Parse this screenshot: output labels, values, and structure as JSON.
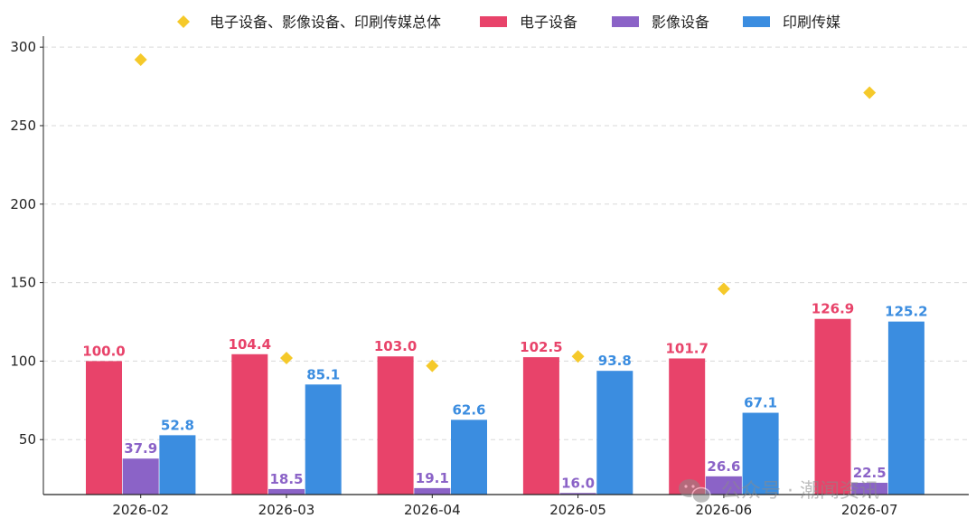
{
  "chart_data": {
    "type": "bar",
    "categories": [
      "2026-02",
      "2026-03",
      "2026-04",
      "2026-05",
      "2026-06",
      "2026-07"
    ],
    "series": [
      {
        "name": "电子设备",
        "kind": "bar",
        "color": "#e8436a",
        "values": [
          100.0,
          104.4,
          103.0,
          102.5,
          101.7,
          126.9
        ],
        "labels": [
          "100.0",
          "104.4",
          "103.0",
          "102.5",
          "101.7",
          "126.9"
        ]
      },
      {
        "name": "影像设备",
        "kind": "bar",
        "color": "#8b63c7",
        "values": [
          37.9,
          18.5,
          19.1,
          16.0,
          26.6,
          22.5
        ],
        "labels": [
          "37.9",
          "18.5",
          "19.1",
          "16.0",
          "26.6",
          "22.5"
        ]
      },
      {
        "name": "印刷传媒",
        "kind": "bar",
        "color": "#3b8de0",
        "values": [
          52.8,
          85.1,
          62.6,
          93.8,
          67.1,
          125.2
        ],
        "labels": [
          "52.8",
          "85.1",
          "62.6",
          "93.8",
          "67.1",
          "125.2"
        ]
      },
      {
        "name": "电子设备、影像设备、印刷传媒总体",
        "kind": "scatter",
        "marker": "diamond",
        "color": "#f5c92a",
        "values": [
          292,
          102,
          97,
          103,
          146,
          271
        ]
      }
    ],
    "legend_order": [
      "电子设备、影像设备、印刷传媒总体",
      "电子设备",
      "影像设备",
      "印刷传媒"
    ],
    "yticks": [
      50,
      100,
      150,
      200,
      250,
      300
    ],
    "yticks_labels": [
      "50",
      "100",
      "150",
      "200",
      "250",
      "300"
    ],
    "ylim": [
      15,
      307
    ],
    "grid": true,
    "legend_position": "top-center",
    "title": "",
    "xlabel": "",
    "ylabel": ""
  },
  "watermark": {
    "text": "公众号 · 潮闻资讯"
  }
}
